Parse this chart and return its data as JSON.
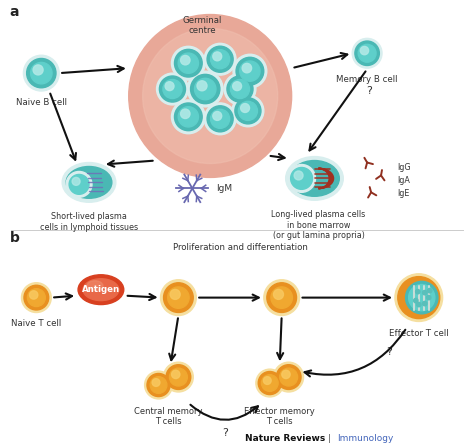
{
  "bg_color": "#ffffff",
  "title_a": "a",
  "title_b": "b",
  "footer_nature": "Nature Reviews",
  "footer_journal": "Immunology",
  "panel_a": {
    "naive_b_label": "Naive B cell",
    "germinal_label": "Germinal\ncentre",
    "memory_b_label": "Memory B cell",
    "short_lived_label": "Short-lived plasma\ncells in lymphoid tissues",
    "igm_label": "IgM",
    "long_lived_label": "Long-lived plasma cells\nin bone marrow\n(or gut lamina propria)",
    "igg_label": "IgG\nIgA\nIgE",
    "question_mark": "?"
  },
  "panel_b": {
    "naive_t_label": "Naive T cell",
    "antigen_label": "Antigen",
    "prolif_label": "Proliferation and differentiation",
    "effector_t_label": "Effector T cell",
    "central_memory_label": "Central memory\nT cells",
    "effector_memory_label": "Effector memory\nT cells",
    "question1": "?",
    "question2": "?"
  },
  "colors": {
    "b_cell_outer": "#4ab8b4",
    "b_cell_ring": "#d8eeee",
    "b_cell_inner": "#5ecfca",
    "b_cell_highlight": "#b0e8e5",
    "germinal_outer_edge": "#e09090",
    "germinal_outer_fill": "#e8a898",
    "germinal_inner_fill": "#f0c0b0",
    "t_cell_outer": "#e89020",
    "t_cell_ring": "#f5dfa0",
    "t_cell_inner": "#f0a830",
    "t_cell_highlight": "#f8c860",
    "antigen_outer": "#d84020",
    "antigen_inner": "#e86848",
    "antigen_highlight": "#f09070",
    "effector_bg": "#f5e8c0",
    "effector_teal_outer": "#4ab8b4",
    "effector_teal_inner": "#6ed0cc",
    "effector_stripe": "#c8ddd8",
    "effector_dots": "#5abfba",
    "plasma_stripe_blue": "#7070b8",
    "plasma_stripe_red": "#a03020",
    "antibody_color": "#903020",
    "igm_color": "#6868b0",
    "text_color": "#333333",
    "immunology_text": "#4466bb",
    "arrow_color": "#111111"
  }
}
